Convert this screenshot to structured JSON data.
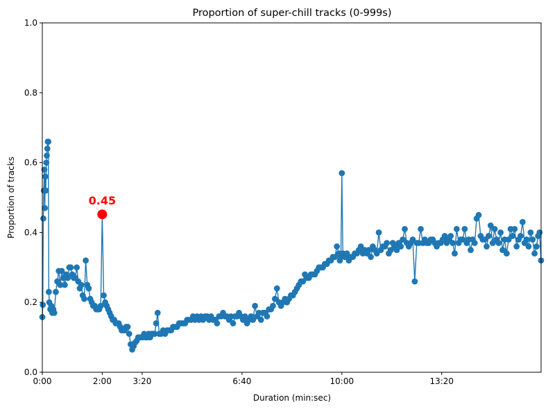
{
  "chart_data": {
    "type": "scatter",
    "title": "Proportion of super-chill tracks (0-999s)",
    "xlabel": "Duration (min:sec)",
    "ylabel": "Proportion of tracks",
    "xlim": [
      0,
      999
    ],
    "ylim": [
      0,
      1
    ],
    "x_ticks": [
      {
        "value": 0,
        "label": "0:00"
      },
      {
        "value": 120,
        "label": "2:00"
      },
      {
        "value": 200,
        "label": "3:20"
      },
      {
        "value": 400,
        "label": "6:40"
      },
      {
        "value": 600,
        "label": "10:00"
      },
      {
        "value": 800,
        "label": "13:20"
      }
    ],
    "y_ticks": [
      {
        "value": 0.0,
        "label": "0.0"
      },
      {
        "value": 0.2,
        "label": "0.2"
      },
      {
        "value": 0.4,
        "label": "0.4"
      },
      {
        "value": 0.6,
        "label": "0.6"
      },
      {
        "value": 0.8,
        "label": "0.8"
      },
      {
        "value": 1.0,
        "label": "1.0"
      }
    ],
    "series_color": "#1f77b4",
    "highlight_color": "#ff0000",
    "highlight": {
      "x": 120,
      "y": 0.452,
      "label": "0.45"
    },
    "series": [
      {
        "name": "proportion",
        "points": [
          [
            0,
            0.158
          ],
          [
            1,
            0.193
          ],
          [
            2,
            0.44
          ],
          [
            3,
            0.52
          ],
          [
            4,
            0.58
          ],
          [
            5,
            0.47
          ],
          [
            6,
            0.56
          ],
          [
            7,
            0.52
          ],
          [
            8,
            0.6
          ],
          [
            9,
            0.62
          ],
          [
            10,
            0.64
          ],
          [
            11,
            0.66
          ],
          [
            12,
            0.66
          ],
          [
            13,
            0.23
          ],
          [
            14,
            0.2
          ],
          [
            16,
            0.18
          ],
          [
            18,
            0.19
          ],
          [
            20,
            0.17
          ],
          [
            22,
            0.18
          ],
          [
            24,
            0.17
          ],
          [
            27,
            0.23
          ],
          [
            30,
            0.26
          ],
          [
            33,
            0.29
          ],
          [
            36,
            0.25
          ],
          [
            39,
            0.29
          ],
          [
            42,
            0.27
          ],
          [
            45,
            0.25
          ],
          [
            48,
            0.28
          ],
          [
            51,
            0.27
          ],
          [
            54,
            0.3
          ],
          [
            57,
            0.3
          ],
          [
            60,
            0.28
          ],
          [
            63,
            0.27
          ],
          [
            66,
            0.27
          ],
          [
            69,
            0.3
          ],
          [
            72,
            0.26
          ],
          [
            75,
            0.24
          ],
          [
            78,
            0.25
          ],
          [
            81,
            0.22
          ],
          [
            84,
            0.21
          ],
          [
            87,
            0.32
          ],
          [
            90,
            0.25
          ],
          [
            93,
            0.24
          ],
          [
            96,
            0.21
          ],
          [
            99,
            0.2
          ],
          [
            102,
            0.19
          ],
          [
            105,
            0.19
          ],
          [
            108,
            0.18
          ],
          [
            111,
            0.18
          ],
          [
            114,
            0.18
          ],
          [
            117,
            0.19
          ],
          [
            120,
            0.452
          ],
          [
            123,
            0.22
          ],
          [
            126,
            0.2
          ],
          [
            129,
            0.19
          ],
          [
            132,
            0.18
          ],
          [
            135,
            0.17
          ],
          [
            138,
            0.16
          ],
          [
            141,
            0.15
          ],
          [
            144,
            0.15
          ],
          [
            147,
            0.14
          ],
          [
            150,
            0.14
          ],
          [
            153,
            0.14
          ],
          [
            156,
            0.13
          ],
          [
            159,
            0.12
          ],
          [
            162,
            0.12
          ],
          [
            165,
            0.12
          ],
          [
            168,
            0.13
          ],
          [
            171,
            0.13
          ],
          [
            174,
            0.11
          ],
          [
            177,
            0.08
          ],
          [
            180,
            0.065
          ],
          [
            183,
            0.075
          ],
          [
            186,
            0.085
          ],
          [
            189,
            0.09
          ],
          [
            192,
            0.1
          ],
          [
            195,
            0.1
          ],
          [
            198,
            0.1
          ],
          [
            201,
            0.1
          ],
          [
            204,
            0.11
          ],
          [
            207,
            0.1
          ],
          [
            210,
            0.1
          ],
          [
            213,
            0.11
          ],
          [
            216,
            0.1
          ],
          [
            219,
            0.11
          ],
          [
            222,
            0.11
          ],
          [
            225,
            0.11
          ],
          [
            228,
            0.14
          ],
          [
            231,
            0.17
          ],
          [
            234,
            0.11
          ],
          [
            238,
            0.11
          ],
          [
            242,
            0.12
          ],
          [
            246,
            0.11
          ],
          [
            250,
            0.12
          ],
          [
            254,
            0.12
          ],
          [
            258,
            0.12
          ],
          [
            262,
            0.13
          ],
          [
            266,
            0.13
          ],
          [
            270,
            0.13
          ],
          [
            274,
            0.14
          ],
          [
            278,
            0.14
          ],
          [
            282,
            0.14
          ],
          [
            286,
            0.14
          ],
          [
            290,
            0.15
          ],
          [
            294,
            0.15
          ],
          [
            298,
            0.15
          ],
          [
            302,
            0.16
          ],
          [
            306,
            0.15
          ],
          [
            310,
            0.16
          ],
          [
            314,
            0.15
          ],
          [
            318,
            0.16
          ],
          [
            322,
            0.15
          ],
          [
            326,
            0.16
          ],
          [
            330,
            0.16
          ],
          [
            334,
            0.15
          ],
          [
            338,
            0.16
          ],
          [
            342,
            0.15
          ],
          [
            346,
            0.15
          ],
          [
            350,
            0.14
          ],
          [
            354,
            0.16
          ],
          [
            358,
            0.16
          ],
          [
            362,
            0.17
          ],
          [
            366,
            0.16
          ],
          [
            370,
            0.16
          ],
          [
            374,
            0.15
          ],
          [
            378,
            0.16
          ],
          [
            382,
            0.14
          ],
          [
            386,
            0.16
          ],
          [
            390,
            0.16
          ],
          [
            394,
            0.17
          ],
          [
            398,
            0.16
          ],
          [
            402,
            0.15
          ],
          [
            406,
            0.16
          ],
          [
            410,
            0.14
          ],
          [
            414,
            0.15
          ],
          [
            418,
            0.16
          ],
          [
            422,
            0.15
          ],
          [
            426,
            0.19
          ],
          [
            430,
            0.16
          ],
          [
            434,
            0.17
          ],
          [
            438,
            0.15
          ],
          [
            442,
            0.17
          ],
          [
            446,
            0.17
          ],
          [
            450,
            0.16
          ],
          [
            454,
            0.18
          ],
          [
            458,
            0.18
          ],
          [
            462,
            0.19
          ],
          [
            466,
            0.21
          ],
          [
            470,
            0.24
          ],
          [
            474,
            0.2
          ],
          [
            478,
            0.19
          ],
          [
            482,
            0.2
          ],
          [
            486,
            0.21
          ],
          [
            490,
            0.2
          ],
          [
            494,
            0.21
          ],
          [
            498,
            0.22
          ],
          [
            502,
            0.22
          ],
          [
            506,
            0.23
          ],
          [
            510,
            0.24
          ],
          [
            514,
            0.25
          ],
          [
            518,
            0.26
          ],
          [
            522,
            0.26
          ],
          [
            526,
            0.28
          ],
          [
            530,
            0.27
          ],
          [
            534,
            0.27
          ],
          [
            538,
            0.28
          ],
          [
            542,
            0.28
          ],
          [
            546,
            0.28
          ],
          [
            550,
            0.29
          ],
          [
            554,
            0.3
          ],
          [
            558,
            0.3
          ],
          [
            562,
            0.3
          ],
          [
            566,
            0.31
          ],
          [
            570,
            0.31
          ],
          [
            574,
            0.32
          ],
          [
            578,
            0.32
          ],
          [
            582,
            0.33
          ],
          [
            586,
            0.33
          ],
          [
            590,
            0.36
          ],
          [
            594,
            0.34
          ],
          [
            596,
            0.32
          ],
          [
            598,
            0.33
          ],
          [
            600,
            0.57
          ],
          [
            602,
            0.34
          ],
          [
            606,
            0.33
          ],
          [
            610,
            0.34
          ],
          [
            614,
            0.32
          ],
          [
            618,
            0.33
          ],
          [
            622,
            0.33
          ],
          [
            626,
            0.34
          ],
          [
            630,
            0.34
          ],
          [
            634,
            0.35
          ],
          [
            638,
            0.36
          ],
          [
            642,
            0.34
          ],
          [
            646,
            0.35
          ],
          [
            650,
            0.34
          ],
          [
            654,
            0.35
          ],
          [
            658,
            0.33
          ],
          [
            662,
            0.36
          ],
          [
            666,
            0.35
          ],
          [
            670,
            0.34
          ],
          [
            674,
            0.4
          ],
          [
            678,
            0.35
          ],
          [
            682,
            0.36
          ],
          [
            686,
            0.36
          ],
          [
            690,
            0.37
          ],
          [
            694,
            0.34
          ],
          [
            698,
            0.35
          ],
          [
            702,
            0.37
          ],
          [
            706,
            0.36
          ],
          [
            710,
            0.35
          ],
          [
            714,
            0.37
          ],
          [
            718,
            0.36
          ],
          [
            722,
            0.38
          ],
          [
            726,
            0.41
          ],
          [
            730,
            0.37
          ],
          [
            734,
            0.36
          ],
          [
            738,
            0.37
          ],
          [
            742,
            0.38
          ],
          [
            746,
            0.26
          ],
          [
            750,
            0.37
          ],
          [
            754,
            0.37
          ],
          [
            758,
            0.41
          ],
          [
            762,
            0.37
          ],
          [
            766,
            0.38
          ],
          [
            770,
            0.37
          ],
          [
            774,
            0.37
          ],
          [
            778,
            0.38
          ],
          [
            782,
            0.38
          ],
          [
            786,
            0.37
          ],
          [
            790,
            0.36
          ],
          [
            794,
            0.37
          ],
          [
            798,
            0.37
          ],
          [
            802,
            0.38
          ],
          [
            806,
            0.39
          ],
          [
            810,
            0.37
          ],
          [
            814,
            0.38
          ],
          [
            818,
            0.39
          ],
          [
            822,
            0.37
          ],
          [
            826,
            0.34
          ],
          [
            830,
            0.41
          ],
          [
            834,
            0.37
          ],
          [
            838,
            0.38
          ],
          [
            842,
            0.38
          ],
          [
            846,
            0.41
          ],
          [
            850,
            0.37
          ],
          [
            854,
            0.38
          ],
          [
            858,
            0.35
          ],
          [
            862,
            0.38
          ],
          [
            866,
            0.37
          ],
          [
            870,
            0.44
          ],
          [
            874,
            0.45
          ],
          [
            878,
            0.39
          ],
          [
            882,
            0.38
          ],
          [
            886,
            0.38
          ],
          [
            890,
            0.36
          ],
          [
            894,
            0.39
          ],
          [
            898,
            0.42
          ],
          [
            902,
            0.37
          ],
          [
            906,
            0.41
          ],
          [
            910,
            0.38
          ],
          [
            914,
            0.37
          ],
          [
            918,
            0.4
          ],
          [
            922,
            0.35
          ],
          [
            926,
            0.38
          ],
          [
            930,
            0.34
          ],
          [
            934,
            0.38
          ],
          [
            938,
            0.41
          ],
          [
            942,
            0.39
          ],
          [
            946,
            0.41
          ],
          [
            950,
            0.36
          ],
          [
            954,
            0.38
          ],
          [
            958,
            0.39
          ],
          [
            962,
            0.43
          ],
          [
            966,
            0.37
          ],
          [
            970,
            0.38
          ],
          [
            974,
            0.36
          ],
          [
            978,
            0.4
          ],
          [
            982,
            0.38
          ],
          [
            986,
            0.34
          ],
          [
            990,
            0.36
          ],
          [
            993,
            0.39
          ],
          [
            996,
            0.4
          ],
          [
            999,
            0.32
          ]
        ]
      }
    ]
  }
}
